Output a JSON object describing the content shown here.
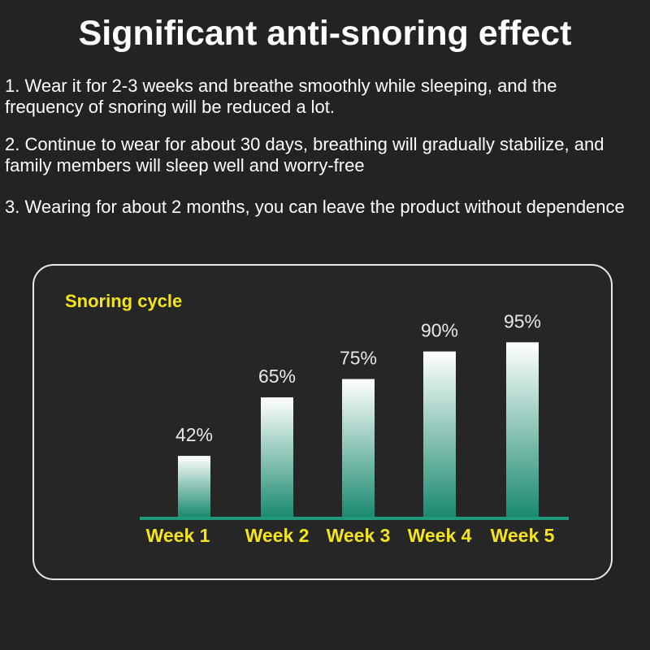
{
  "title": "Significant anti-snoring effect",
  "points": [
    "1. Wear it for 2-3 weeks and breathe smoothly while sleeping, and the frequency of snoring will be reduced a lot.",
    "2. Continue to wear for about 30 days, breathing will gradually stabilize, and family members will sleep well and worry-free",
    "3. Wearing for about 2 months, you can leave the product without dependence"
  ],
  "colors": {
    "background": "#232323",
    "bar_top": "#ffffff",
    "bar_bottom": "#1a8a6e",
    "axis": "#1e9a7a",
    "week_label": "#f3e41d",
    "chart_title": "#f3e41d"
  },
  "chart_data": {
    "type": "bar",
    "title": "Snoring cycle",
    "categories": [
      "Week 1",
      "Week 2",
      "Week 3",
      "Week 4",
      "Week 5"
    ],
    "values": [
      42,
      65,
      75,
      90,
      95
    ],
    "value_labels": [
      "42%",
      "65%",
      "75%",
      "90%",
      "95%"
    ],
    "xlabel": "",
    "ylabel": "",
    "grid": false
  }
}
